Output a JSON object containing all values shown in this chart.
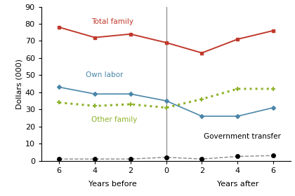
{
  "x_values": [
    -6,
    -4,
    -2,
    0,
    2,
    4,
    6
  ],
  "total_family": [
    78,
    72,
    74,
    69,
    63,
    71,
    76
  ],
  "own_labor": [
    43,
    39,
    39,
    35,
    26,
    26,
    31
  ],
  "other_family": [
    34,
    32,
    33,
    31,
    36,
    42,
    42
  ],
  "gov_transfer": [
    1,
    1,
    1,
    2,
    1,
    2.5,
    3
  ],
  "colors": {
    "total_family": "#c0392b",
    "own_labor": "#4a86a8",
    "other_family": "#8db32a",
    "gov_transfer": "#888888"
  },
  "ylabel": "Dollars (000)",
  "ylim": [
    0,
    90
  ],
  "yticks": [
    0,
    10,
    20,
    30,
    40,
    50,
    60,
    70,
    80,
    90
  ],
  "xlim": [
    -7,
    7
  ],
  "labels": {
    "total_family": "Total family",
    "own_labor": "Own labor",
    "other_family": "Other family",
    "gov_transfer": "Government transfer"
  }
}
